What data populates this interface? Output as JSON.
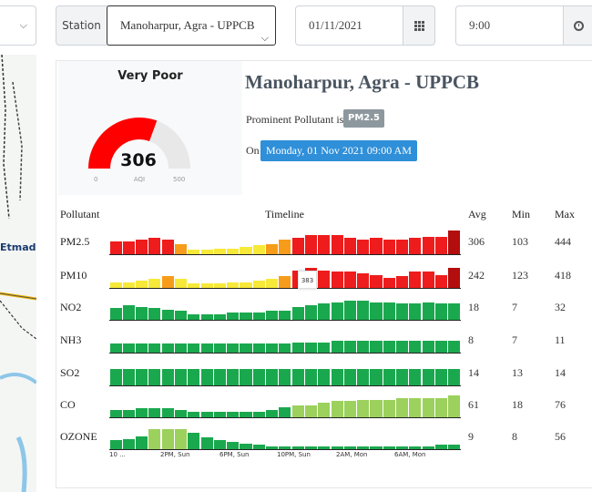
{
  "controls": {
    "station_label": "Station",
    "station_value": "Manoharpur, Agra - UPPCB",
    "date_value": "01/11/2021",
    "time_value": "9:00",
    "icons": [
      "chevron-down-icon",
      "calendar-grid-icon",
      "clock-icon"
    ]
  },
  "map": {
    "visible_label": "Etmadp"
  },
  "aqi": {
    "category": "Very Poor",
    "value": "306",
    "unit": "AQI",
    "min": "0",
    "max": "500",
    "gauge_fraction": 0.612,
    "fill_color": "#ff0000",
    "track_color": "#e8e8e8"
  },
  "station": {
    "title": "Manoharpur, Agra - UPPCB",
    "prominent_label": "Prominent Pollutant is",
    "prominent_value": "PM2.5",
    "on_label": "On",
    "datetime": "Monday, 01 Nov 2021 09:00 AM"
  },
  "table": {
    "headers": {
      "pollutant": "Pollutant",
      "timeline": "Timeline",
      "avg": "Avg",
      "min": "Min",
      "max": "Max"
    },
    "tooltip_value": "383",
    "x_ticks": [
      "10 ...",
      "2PM, Sun",
      "6PM, Sun",
      "10PM, Sun",
      "2AM, Mon",
      "6AM, Mon"
    ],
    "colors": {
      "good": "#1aa84e",
      "satisfactory": "#9bd15c",
      "moderate": "#f7e93a",
      "poor": "#f79c1a",
      "very_poor": "#ee1c1c",
      "severe": "#b30d0d"
    },
    "rows": [
      {
        "name": "PM2.5",
        "avg": "306",
        "min": "103",
        "max": "444",
        "bars": [
          0.45,
          0.45,
          0.5,
          0.55,
          0.5,
          0.35,
          0.15,
          0.15,
          0.2,
          0.2,
          0.25,
          0.3,
          0.35,
          0.5,
          0.55,
          0.65,
          0.65,
          0.65,
          0.55,
          0.5,
          0.55,
          0.5,
          0.5,
          0.55,
          0.6,
          0.6,
          0.8
        ],
        "levels": [
          "very_poor",
          "very_poor",
          "very_poor",
          "very_poor",
          "very_poor",
          "poor",
          "moderate",
          "moderate",
          "moderate",
          "moderate",
          "moderate",
          "moderate",
          "poor",
          "poor",
          "very_poor",
          "very_poor",
          "very_poor",
          "very_poor",
          "very_poor",
          "very_poor",
          "very_poor",
          "very_poor",
          "very_poor",
          "very_poor",
          "very_poor",
          "very_poor",
          "severe"
        ]
      },
      {
        "name": "PM10",
        "avg": "242",
        "min": "123",
        "max": "418",
        "bars": [
          0.2,
          0.2,
          0.25,
          0.3,
          0.4,
          0.3,
          0.15,
          0.15,
          0.15,
          0.2,
          0.2,
          0.25,
          0.3,
          0.4,
          0.6,
          0.7,
          0.6,
          0.55,
          0.55,
          0.5,
          0.45,
          0.35,
          0.4,
          0.55,
          0.55,
          0.45,
          0.7
        ],
        "levels": [
          "moderate",
          "moderate",
          "moderate",
          "moderate",
          "poor",
          "moderate",
          "moderate",
          "moderate",
          "moderate",
          "moderate",
          "moderate",
          "moderate",
          "moderate",
          "poor",
          "very_poor",
          "very_poor",
          "very_poor",
          "very_poor",
          "very_poor",
          "very_poor",
          "very_poor",
          "very_poor",
          "very_poor",
          "very_poor",
          "very_poor",
          "very_poor",
          "severe"
        ]
      },
      {
        "name": "NO2",
        "avg": "18",
        "min": "7",
        "max": "32",
        "bars": [
          0.4,
          0.5,
          0.45,
          0.4,
          0.35,
          0.3,
          0.2,
          0.2,
          0.2,
          0.25,
          0.25,
          0.25,
          0.3,
          0.3,
          0.45,
          0.5,
          0.55,
          0.6,
          0.65,
          0.65,
          0.6,
          0.6,
          0.55,
          0.55,
          0.6,
          0.55,
          0.55
        ]
      },
      {
        "name": "NH3",
        "avg": "8",
        "min": "7",
        "max": "11",
        "bars": [
          0.3,
          0.3,
          0.3,
          0.3,
          0.3,
          0.3,
          0.3,
          0.3,
          0.3,
          0.3,
          0.3,
          0.3,
          0.3,
          0.3,
          0.35,
          0.35,
          0.35,
          0.4,
          0.4,
          0.4,
          0.4,
          0.4,
          0.4,
          0.4,
          0.4,
          0.4,
          0.4
        ]
      },
      {
        "name": "SO2",
        "avg": "14",
        "min": "13",
        "max": "14",
        "bars": [
          0.55,
          0.55,
          0.55,
          0.55,
          0.55,
          0.55,
          0.55,
          0.55,
          0.55,
          0.55,
          0.55,
          0.55,
          0.55,
          0.55,
          0.55,
          0.55,
          0.55,
          0.55,
          0.55,
          0.55,
          0.55,
          0.55,
          0.55,
          0.55,
          0.55,
          0.55,
          0.55
        ]
      },
      {
        "name": "CO",
        "avg": "61",
        "min": "18",
        "max": "76",
        "bars": [
          0.25,
          0.25,
          0.3,
          0.3,
          0.3,
          0.25,
          0.2,
          0.2,
          0.2,
          0.2,
          0.2,
          0.2,
          0.25,
          0.35,
          0.4,
          0.4,
          0.5,
          0.55,
          0.55,
          0.6,
          0.6,
          0.6,
          0.65,
          0.65,
          0.65,
          0.65,
          0.75
        ],
        "levels": [
          "good",
          "good",
          "good",
          "good",
          "good",
          "good",
          "good",
          "good",
          "good",
          "good",
          "good",
          "good",
          "good",
          "good",
          "satisfactory",
          "satisfactory",
          "satisfactory",
          "satisfactory",
          "satisfactory",
          "satisfactory",
          "satisfactory",
          "satisfactory",
          "satisfactory",
          "satisfactory",
          "satisfactory",
          "satisfactory",
          "satisfactory"
        ]
      },
      {
        "name": "OZONE",
        "avg": "9",
        "min": "8",
        "max": "56",
        "bars": [
          0.3,
          0.35,
          0.45,
          0.7,
          0.7,
          0.7,
          0.55,
          0.4,
          0.3,
          0.25,
          0.2,
          0.15,
          0.1,
          0.1,
          0.1,
          0.1,
          0.1,
          0.1,
          0.1,
          0.1,
          0.1,
          0.1,
          0.1,
          0.1,
          0.1,
          0.15,
          0.15
        ],
        "levels": [
          "good",
          "good",
          "good",
          "satisfactory",
          "satisfactory",
          "satisfactory",
          "good",
          "good",
          "good",
          "good",
          "good",
          "good",
          "good",
          "good",
          "good",
          "good",
          "good",
          "good",
          "good",
          "good",
          "good",
          "good",
          "good",
          "good",
          "good",
          "good",
          "good"
        ]
      }
    ]
  }
}
